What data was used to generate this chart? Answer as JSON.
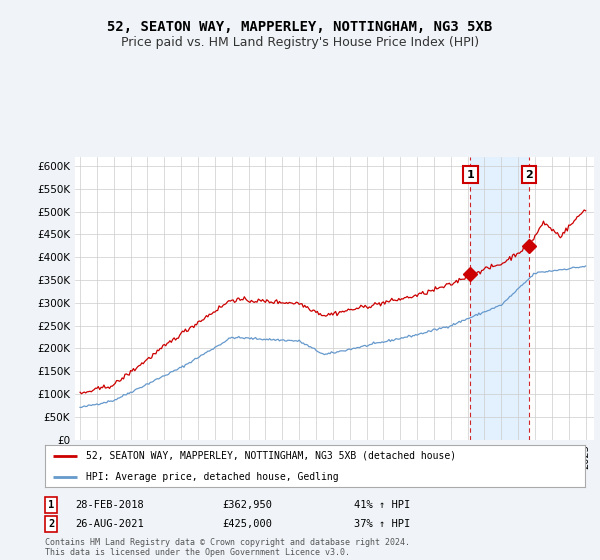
{
  "title": "52, SEATON WAY, MAPPERLEY, NOTTINGHAM, NG3 5XB",
  "subtitle": "Price paid vs. HM Land Registry's House Price Index (HPI)",
  "ylim": [
    0,
    620000
  ],
  "yticks": [
    0,
    50000,
    100000,
    150000,
    200000,
    250000,
    300000,
    350000,
    400000,
    450000,
    500000,
    550000,
    600000
  ],
  "ytick_labels": [
    "£0",
    "£50K",
    "£100K",
    "£150K",
    "£200K",
    "£250K",
    "£300K",
    "£350K",
    "£400K",
    "£450K",
    "£500K",
    "£550K",
    "£600K"
  ],
  "sale1_date": 2018.16,
  "sale1_price": 362950,
  "sale2_date": 2021.65,
  "sale2_price": 425000,
  "sale1_annotation": "28-FEB-2018",
  "sale1_amount": "£362,950",
  "sale1_hpi": "41% ↑ HPI",
  "sale2_annotation": "26-AUG-2021",
  "sale2_amount": "£425,000",
  "sale2_hpi": "37% ↑ HPI",
  "legend1": "52, SEATON WAY, MAPPERLEY, NOTTINGHAM, NG3 5XB (detached house)",
  "legend2": "HPI: Average price, detached house, Gedling",
  "footer": "Contains HM Land Registry data © Crown copyright and database right 2024.\nThis data is licensed under the Open Government Licence v3.0.",
  "line1_color": "#cc0000",
  "line2_color": "#6699cc",
  "shade_color": "#ddeeff",
  "background_color": "#f0f4f8",
  "plot_bg_color": "#ffffff",
  "grid_color": "#cccccc",
  "title_fontsize": 10,
  "subtitle_fontsize": 9,
  "xlim_left": 1994.7,
  "xlim_right": 2025.5
}
